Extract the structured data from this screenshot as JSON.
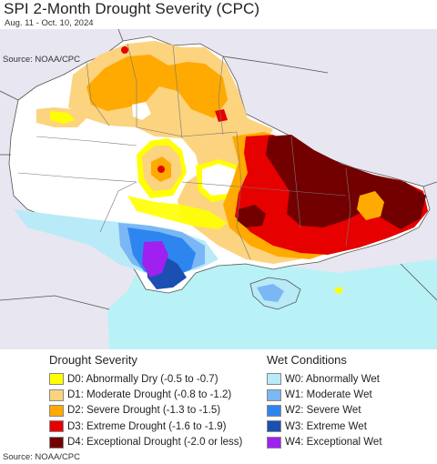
{
  "header": {
    "title": "SPI 2-Month Drought Severity (CPC)",
    "subtitle": "Aug. 11 - Oct. 10, 2024",
    "source_top": "Source: NOAA/CPC"
  },
  "colors": {
    "land_outside": "#e8e6f0",
    "land_inside": "#ffffff",
    "sea": "#b8f2f6",
    "border": "#555555",
    "D0": "#ffff00",
    "D1": "#fcd37f",
    "D2": "#ffaa00",
    "D3": "#e60000",
    "D4": "#730000",
    "W0": "#b8eaf8",
    "W1": "#7ab7f4",
    "W2": "#2d86f0",
    "W3": "#1b4fb2",
    "W4": "#a020f0"
  },
  "legend": {
    "drought": {
      "title": "Drought Severity",
      "items": [
        {
          "code": "D0",
          "label": "D0: Abnormally Dry (-0.5 to -0.7)",
          "color": "#ffff00"
        },
        {
          "code": "D1",
          "label": "D1: Moderate Drought (-0.8 to -1.2)",
          "color": "#fcd37f"
        },
        {
          "code": "D2",
          "label": "D2: Severe Drought (-1.3 to -1.5)",
          "color": "#ffaa00"
        },
        {
          "code": "D3",
          "label": "D3: Extreme Drought (-1.6 to -1.9)",
          "color": "#e60000"
        },
        {
          "code": "D4",
          "label": "D4: Exceptional Drought (-2.0 or less)",
          "color": "#730000"
        }
      ]
    },
    "wet": {
      "title": "Wet Conditions",
      "items": [
        {
          "code": "W0",
          "label": "W0: Abnormally Wet",
          "color": "#b8eaf8"
        },
        {
          "code": "W1",
          "label": "W1: Moderate Wet",
          "color": "#7ab7f4"
        },
        {
          "code": "W2",
          "label": "W2: Severe Wet",
          "color": "#2d86f0"
        },
        {
          "code": "W3",
          "label": "W3: Extreme Wet",
          "color": "#1b4fb2"
        },
        {
          "code": "W4",
          "label": "W4: Exceptional Wet",
          "color": "#a020f0"
        }
      ]
    }
  },
  "footer": {
    "source": "Source: NOAA/CPC"
  }
}
